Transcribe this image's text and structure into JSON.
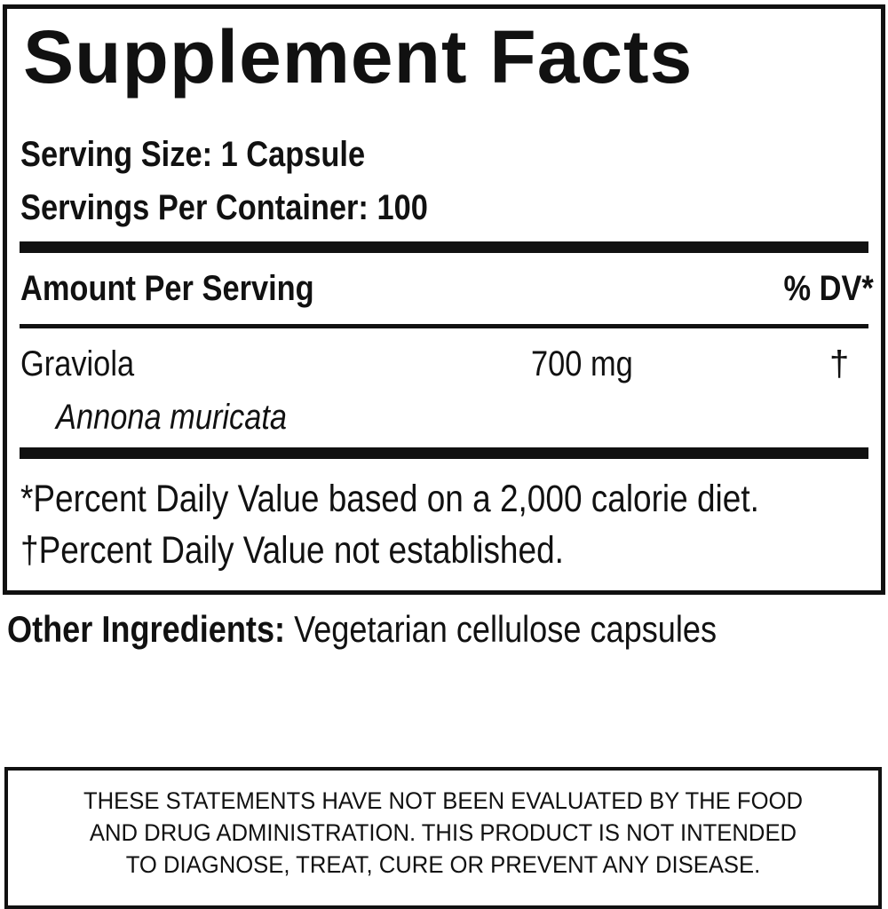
{
  "title": "Supplement Facts",
  "serving_size": "Serving Size: 1 Capsule",
  "servings_per_container": "Servings Per Container: 100",
  "header": {
    "amount": "Amount Per Serving",
    "dv": "% DV*"
  },
  "ingredients": [
    {
      "name": "Graviola",
      "latin": "Annona muricata",
      "amount": "700 mg",
      "dv": "†"
    }
  ],
  "footnotes": [
    "*Percent Daily Value based on a 2,000 calorie diet.",
    "†Percent Daily Value not established."
  ],
  "other_ingredients": {
    "label": "Other Ingredients:",
    "value": "Vegetarian cellulose capsules"
  },
  "disclaimer": [
    "THESE STATEMENTS HAVE NOT BEEN EVALUATED BY THE FOOD",
    "AND DRUG ADMINISTRATION. THIS PRODUCT IS NOT INTENDED",
    "TO DIAGNOSE, TREAT, CURE OR PREVENT ANY DISEASE."
  ]
}
